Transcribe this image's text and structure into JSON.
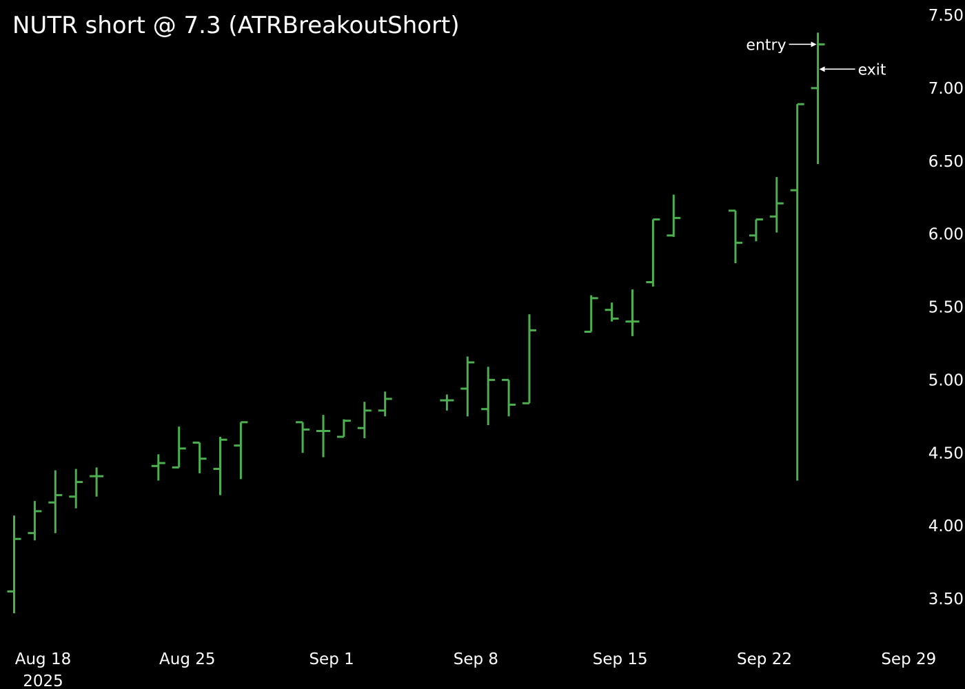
{
  "chart_data": {
    "type": "ohlc",
    "title": "NUTR short @ 7.3 (ATRBreakoutShort)",
    "xlabel": "",
    "ylabel": "",
    "ylim": [
      3.32,
      7.55
    ],
    "y_ticks": [
      "3.50",
      "4.00",
      "4.50",
      "5.00",
      "5.50",
      "6.00",
      "6.50",
      "7.00",
      "7.50"
    ],
    "y_tick_values": [
      3.5,
      4.0,
      4.5,
      5.0,
      5.5,
      6.0,
      6.5,
      7.0,
      7.5
    ],
    "x_ticks": [
      {
        "date": "2025-08-18",
        "label": "Aug 18",
        "sublabel": "2025"
      },
      {
        "date": "2025-08-25",
        "label": "Aug 25",
        "sublabel": ""
      },
      {
        "date": "2025-09-01",
        "label": "Sep 1",
        "sublabel": ""
      },
      {
        "date": "2025-09-08",
        "label": "Sep 8",
        "sublabel": ""
      },
      {
        "date": "2025-09-15",
        "label": "Sep 15",
        "sublabel": ""
      },
      {
        "date": "2025-09-22",
        "label": "Sep 22",
        "sublabel": ""
      },
      {
        "date": "2025-09-29",
        "label": "Sep 29",
        "sublabel": ""
      }
    ],
    "bar_color": "#4caf50",
    "background": "#000000",
    "grid": false,
    "y_axis_side": "right",
    "bars": [
      {
        "date": "2025-08-18",
        "open": 3.55,
        "high": 4.07,
        "low": 3.4,
        "close": 3.91
      },
      {
        "date": "2025-08-19",
        "open": 3.95,
        "high": 4.17,
        "low": 3.9,
        "close": 4.1
      },
      {
        "date": "2025-08-20",
        "open": 4.16,
        "high": 4.38,
        "low": 3.95,
        "close": 4.21
      },
      {
        "date": "2025-08-21",
        "open": 4.2,
        "high": 4.39,
        "low": 4.12,
        "close": 4.3
      },
      {
        "date": "2025-08-22",
        "open": 4.34,
        "high": 4.4,
        "low": 4.2,
        "close": 4.34
      },
      {
        "date": "2025-08-25",
        "open": 4.41,
        "high": 4.49,
        "low": 4.31,
        "close": 4.43
      },
      {
        "date": "2025-08-26",
        "open": 4.4,
        "high": 4.68,
        "low": 4.4,
        "close": 4.53
      },
      {
        "date": "2025-08-27",
        "open": 4.57,
        "high": 4.57,
        "low": 4.36,
        "close": 4.46
      },
      {
        "date": "2025-08-28",
        "open": 4.39,
        "high": 4.61,
        "low": 4.21,
        "close": 4.59
      },
      {
        "date": "2025-08-29",
        "open": 4.55,
        "high": 4.71,
        "low": 4.32,
        "close": 4.71
      },
      {
        "date": "2025-09-01",
        "open": 4.71,
        "high": 4.71,
        "low": 4.5,
        "close": 4.66
      },
      {
        "date": "2025-09-02",
        "open": 4.65,
        "high": 4.76,
        "low": 4.47,
        "close": 4.65
      },
      {
        "date": "2025-09-03",
        "open": 4.61,
        "high": 4.73,
        "low": 4.61,
        "close": 4.72
      },
      {
        "date": "2025-09-04",
        "open": 4.67,
        "high": 4.85,
        "low": 4.6,
        "close": 4.79
      },
      {
        "date": "2025-09-05",
        "open": 4.79,
        "high": 4.92,
        "low": 4.75,
        "close": 4.87
      },
      {
        "date": "2025-09-08",
        "open": 4.86,
        "high": 4.9,
        "low": 4.79,
        "close": 4.86
      },
      {
        "date": "2025-09-09",
        "open": 4.94,
        "high": 5.16,
        "low": 4.75,
        "close": 5.12
      },
      {
        "date": "2025-09-10",
        "open": 4.8,
        "high": 5.09,
        "low": 4.69,
        "close": 5.0
      },
      {
        "date": "2025-09-11",
        "open": 5.0,
        "high": 5.0,
        "low": 4.75,
        "close": 4.83
      },
      {
        "date": "2025-09-12",
        "open": 4.84,
        "high": 5.45,
        "low": 4.84,
        "close": 5.34
      },
      {
        "date": "2025-09-15",
        "open": 5.33,
        "high": 5.58,
        "low": 5.33,
        "close": 5.56
      },
      {
        "date": "2025-09-16",
        "open": 5.48,
        "high": 5.53,
        "low": 5.4,
        "close": 5.42
      },
      {
        "date": "2025-09-17",
        "open": 5.4,
        "high": 5.62,
        "low": 5.3,
        "close": 5.4
      },
      {
        "date": "2025-09-18",
        "open": 5.67,
        "high": 6.1,
        "low": 5.64,
        "close": 6.1
      },
      {
        "date": "2025-09-19",
        "open": 5.99,
        "high": 6.27,
        "low": 5.98,
        "close": 6.11
      },
      {
        "date": "2025-09-22",
        "open": 6.16,
        "high": 6.16,
        "low": 5.8,
        "close": 5.94
      },
      {
        "date": "2025-09-23",
        "open": 5.99,
        "high": 6.1,
        "low": 5.95,
        "close": 6.1
      },
      {
        "date": "2025-09-24",
        "open": 6.12,
        "high": 6.39,
        "low": 6.01,
        "close": 6.21
      },
      {
        "date": "2025-09-25",
        "open": 6.3,
        "high": 6.89,
        "low": 4.31,
        "close": 6.89
      },
      {
        "date": "2025-09-26",
        "open": 7.0,
        "high": 7.38,
        "low": 6.48,
        "close": 7.3
      }
    ],
    "annotations": [
      {
        "label": "entry",
        "date": "2025-09-26",
        "price": 7.3,
        "side": "left"
      },
      {
        "label": "exit",
        "date": "2025-09-26",
        "price": 7.13,
        "side": "right"
      }
    ]
  }
}
